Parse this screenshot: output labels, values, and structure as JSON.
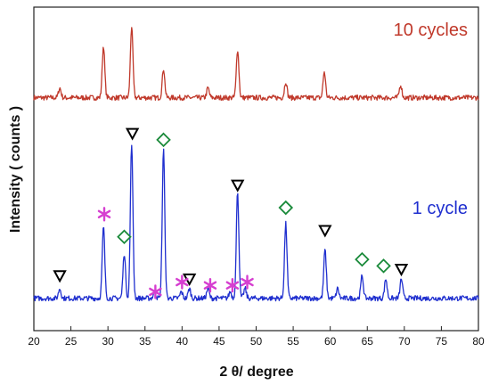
{
  "chart_data": {
    "type": "line",
    "title": "",
    "xlabel": "2 θ/ degree",
    "ylabel": "Intensity ( counts )",
    "xlim": [
      20,
      80
    ],
    "ylim": [
      0,
      100
    ],
    "xticks": [
      "20",
      "25",
      "30",
      "35",
      "40",
      "45",
      "50",
      "55",
      "60",
      "65",
      "70",
      "75",
      "80"
    ],
    "grid": false,
    "colors": {
      "top": "#c0392b",
      "bottom": "#1f2fcf",
      "triangle": "#000000",
      "diamond": "#1a8a3a",
      "star": "#d63fd0"
    },
    "series": [
      {
        "name": "10 cycles",
        "baseline": 72,
        "peaks": [
          {
            "x": 23.5,
            "h": 3
          },
          {
            "x": 29.4,
            "h": 16
          },
          {
            "x": 33.2,
            "h": 22
          },
          {
            "x": 37.5,
            "h": 9
          },
          {
            "x": 43.5,
            "h": 3
          },
          {
            "x": 47.5,
            "h": 15
          },
          {
            "x": 54.0,
            "h": 5
          },
          {
            "x": 59.2,
            "h": 8
          },
          {
            "x": 69.5,
            "h": 4
          }
        ]
      },
      {
        "name": "1 cycle",
        "baseline": 10,
        "peaks": [
          {
            "x": 23.5,
            "h": 3
          },
          {
            "x": 29.4,
            "h": 22
          },
          {
            "x": 32.2,
            "h": 14
          },
          {
            "x": 33.2,
            "h": 48
          },
          {
            "x": 36.3,
            "h": 2
          },
          {
            "x": 37.5,
            "h": 46
          },
          {
            "x": 39.9,
            "h": 2
          },
          {
            "x": 41.0,
            "h": 3
          },
          {
            "x": 43.5,
            "h": 3
          },
          {
            "x": 46.5,
            "h": 2
          },
          {
            "x": 47.5,
            "h": 33
          },
          {
            "x": 48.5,
            "h": 3
          },
          {
            "x": 54.0,
            "h": 23
          },
          {
            "x": 59.3,
            "h": 15
          },
          {
            "x": 61.0,
            "h": 3
          },
          {
            "x": 64.3,
            "h": 7
          },
          {
            "x": 67.5,
            "h": 6
          },
          {
            "x": 69.6,
            "h": 6
          }
        ]
      }
    ],
    "markers": [
      {
        "type": "triangle",
        "x": 23.5,
        "y": 17
      },
      {
        "type": "triangle",
        "x": 33.3,
        "y": 61
      },
      {
        "type": "triangle",
        "x": 41.0,
        "y": 16
      },
      {
        "type": "triangle",
        "x": 47.5,
        "y": 45
      },
      {
        "type": "triangle",
        "x": 59.3,
        "y": 31
      },
      {
        "type": "triangle",
        "x": 69.6,
        "y": 19
      },
      {
        "type": "diamond",
        "x": 32.2,
        "y": 29
      },
      {
        "type": "diamond",
        "x": 37.5,
        "y": 59
      },
      {
        "type": "diamond",
        "x": 54.0,
        "y": 38
      },
      {
        "type": "diamond",
        "x": 64.3,
        "y": 22
      },
      {
        "type": "diamond",
        "x": 67.2,
        "y": 20
      },
      {
        "type": "star",
        "x": 29.5,
        "y": 36
      },
      {
        "type": "star",
        "x": 36.4,
        "y": 12
      },
      {
        "type": "star",
        "x": 40.0,
        "y": 15
      },
      {
        "type": "star",
        "x": 43.8,
        "y": 14
      },
      {
        "type": "star",
        "x": 46.8,
        "y": 14
      },
      {
        "type": "star",
        "x": 48.8,
        "y": 15
      }
    ]
  }
}
